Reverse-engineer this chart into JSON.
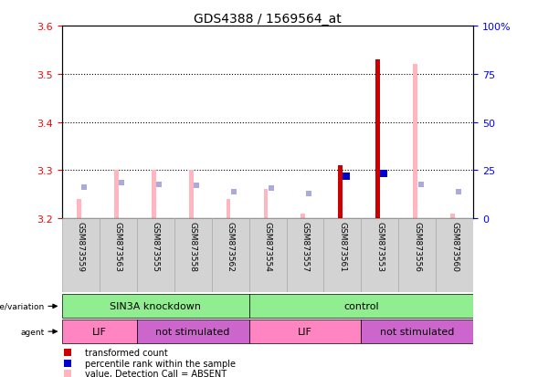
{
  "title": "GDS4388 / 1569564_at",
  "samples": [
    "GSM873559",
    "GSM873563",
    "GSM873555",
    "GSM873558",
    "GSM873562",
    "GSM873554",
    "GSM873557",
    "GSM873561",
    "GSM873553",
    "GSM873556",
    "GSM873560"
  ],
  "ylim_left": [
    3.2,
    3.6
  ],
  "ylim_right": [
    0,
    100
  ],
  "yticks_left": [
    3.2,
    3.3,
    3.4,
    3.5,
    3.6
  ],
  "yticks_right": [
    0,
    25,
    50,
    75,
    100
  ],
  "ytick_right_labels": [
    "0",
    "25",
    "50",
    "75",
    "100%"
  ],
  "bar_base": 3.2,
  "absent_value_top": [
    3.24,
    3.3,
    3.3,
    3.3,
    3.24,
    3.26,
    3.21,
    3.26,
    3.52,
    3.52,
    3.21
  ],
  "present_value_top": [
    null,
    null,
    null,
    null,
    null,
    null,
    null,
    3.31,
    3.53,
    null,
    null
  ],
  "is_absent_value": [
    true,
    true,
    true,
    true,
    true,
    true,
    true,
    false,
    false,
    true,
    true
  ],
  "is_absent_rank": [
    true,
    true,
    true,
    true,
    true,
    true,
    true,
    false,
    false,
    true,
    true
  ],
  "absent_rank_y": [
    3.265,
    3.274,
    3.27,
    3.268,
    3.256,
    3.263,
    3.252,
    null,
    null,
    3.27,
    3.256
  ],
  "present_rank_y": [
    null,
    null,
    null,
    null,
    null,
    null,
    null,
    3.288,
    3.293,
    null,
    null
  ],
  "genotype_groups": [
    {
      "label": "SIN3A knockdown",
      "start": 0,
      "end": 5,
      "color": "#90EE90"
    },
    {
      "label": "control",
      "start": 5,
      "end": 11,
      "color": "#90EE90"
    }
  ],
  "agent_groups": [
    {
      "label": "LIF",
      "start": 0,
      "end": 2,
      "color": "#FF85C2"
    },
    {
      "label": "not stimulated",
      "start": 2,
      "end": 5,
      "color": "#CC66CC"
    },
    {
      "label": "LIF",
      "start": 5,
      "end": 8,
      "color": "#FF85C2"
    },
    {
      "label": "not stimulated",
      "start": 8,
      "end": 11,
      "color": "#CC66CC"
    }
  ],
  "color_red_dark": "#CC0000",
  "color_red_light": "#FFB6C1",
  "color_blue_dark": "#0000CC",
  "color_blue_light": "#AAAADD",
  "color_green": "#90EE90",
  "color_gray": "#D3D3D3",
  "color_gray_border": "#AAAAAA"
}
